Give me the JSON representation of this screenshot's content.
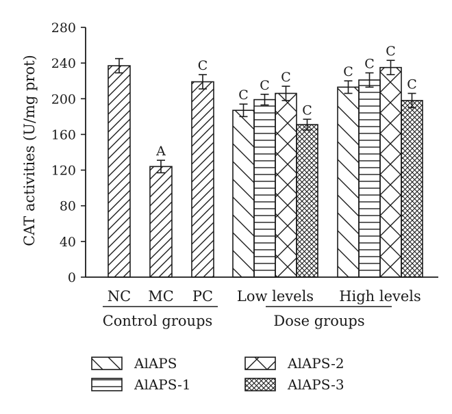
{
  "chart_data": {
    "type": "bar",
    "title": "",
    "ylabel": "CAT activities (U/mg prot)",
    "ylim": [
      0,
      280
    ],
    "yticks": [
      0,
      40,
      80,
      120,
      160,
      200,
      240,
      280
    ],
    "grid": false,
    "legend_position": "bottom",
    "control_groups": {
      "label": "Control groups",
      "categories": [
        "NC",
        "MC",
        "PC"
      ],
      "values": [
        237,
        124,
        219
      ],
      "errors": [
        8,
        7,
        8
      ],
      "significance": [
        "",
        "A",
        "C"
      ]
    },
    "dose_groups": {
      "label": "Dose groups",
      "categories": [
        "Low levels",
        "High levels"
      ],
      "series": [
        {
          "name": "AlAPS",
          "pattern": "diagonal-down",
          "values": [
            187,
            213
          ],
          "errors": [
            7,
            7
          ],
          "significance": [
            "C",
            "C"
          ]
        },
        {
          "name": "AlAPS-1",
          "pattern": "horizontal",
          "values": [
            199,
            221
          ],
          "errors": [
            6,
            8
          ],
          "significance": [
            "C",
            "C"
          ]
        },
        {
          "name": "AlAPS-2",
          "pattern": "cross-diagonal",
          "values": [
            206,
            235
          ],
          "errors": [
            8,
            8
          ],
          "significance": [
            "C",
            "C"
          ]
        },
        {
          "name": "AlAPS-3",
          "pattern": "crosshatch",
          "values": [
            171,
            198
          ],
          "errors": [
            6,
            8
          ],
          "significance": [
            "C",
            "C"
          ]
        }
      ]
    }
  },
  "colors": {
    "ink": "#1a1a1a",
    "background": "#ffffff"
  }
}
